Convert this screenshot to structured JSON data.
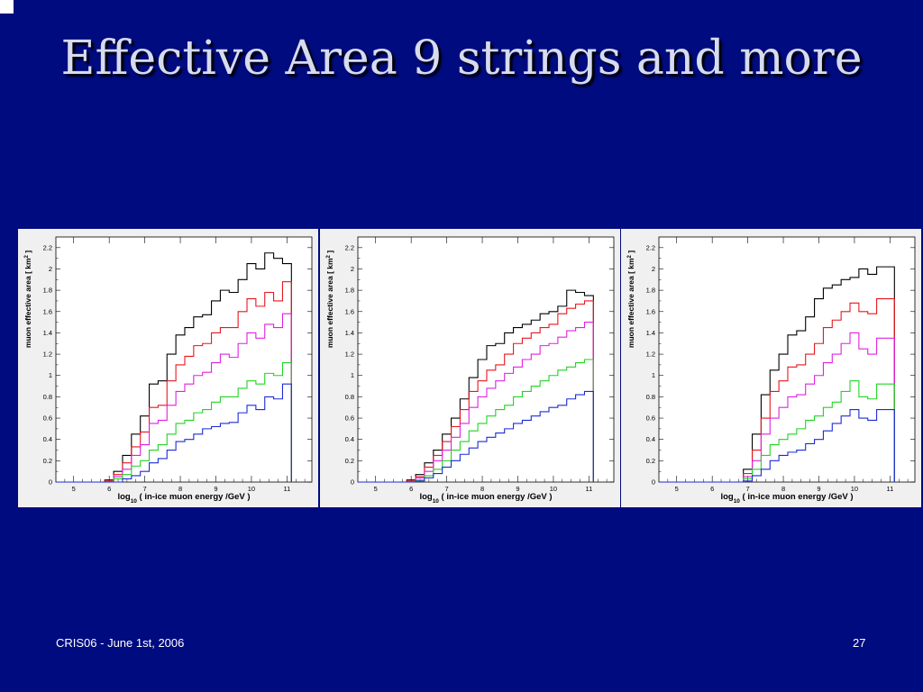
{
  "slide": {
    "title": "Effective Area 9 strings and more",
    "footer_left": "CRIS06 - June 1st, 2006",
    "footer_right": "27"
  },
  "chart_data": [
    {
      "type": "line",
      "step": true,
      "xlabel": "log10 ( in-ice muon energy /GeV )",
      "ylabel": "muon effective area [ km² ]",
      "xlim": [
        4.5,
        11.7
      ],
      "ylim": [
        0,
        2.3
      ],
      "x_ticks": [
        "5",
        "6",
        "7",
        "8",
        "9",
        "10",
        "11"
      ],
      "y_ticks": [
        "0",
        "0.2",
        "0.4",
        "0.6",
        "0.8",
        "1",
        "1.2",
        "1.4",
        "1.6",
        "1.8",
        "2",
        "2.2"
      ],
      "x": [
        6.0,
        6.25,
        6.5,
        6.75,
        7.0,
        7.25,
        7.5,
        7.75,
        8.0,
        8.25,
        8.5,
        8.75,
        9.0,
        9.25,
        9.5,
        9.75,
        10.0,
        10.25,
        10.5,
        10.75,
        11.0
      ],
      "series": [
        {
          "color": "#000000",
          "values": [
            0.02,
            0.1,
            0.25,
            0.45,
            0.62,
            0.92,
            0.95,
            1.2,
            1.38,
            1.45,
            1.55,
            1.57,
            1.7,
            1.8,
            1.78,
            1.9,
            2.05,
            2.0,
            2.15,
            2.1,
            2.05
          ]
        },
        {
          "color": "#e8161e",
          "values": [
            0.01,
            0.07,
            0.18,
            0.33,
            0.47,
            0.7,
            0.72,
            0.95,
            1.1,
            1.18,
            1.28,
            1.3,
            1.4,
            1.45,
            1.45,
            1.6,
            1.72,
            1.65,
            1.78,
            1.7,
            1.88
          ]
        },
        {
          "color": "#e020e0",
          "values": [
            0.0,
            0.05,
            0.12,
            0.25,
            0.35,
            0.55,
            0.58,
            0.72,
            0.85,
            0.92,
            1.0,
            1.03,
            1.12,
            1.2,
            1.17,
            1.3,
            1.4,
            1.35,
            1.48,
            1.45,
            1.58
          ]
        },
        {
          "color": "#22d322",
          "values": [
            0.0,
            0.03,
            0.07,
            0.15,
            0.2,
            0.3,
            0.35,
            0.45,
            0.55,
            0.58,
            0.65,
            0.68,
            0.75,
            0.8,
            0.8,
            0.88,
            0.95,
            0.92,
            1.02,
            1.0,
            1.12
          ]
        },
        {
          "color": "#1c2bd6",
          "values": [
            0.0,
            0.0,
            0.03,
            0.06,
            0.1,
            0.18,
            0.22,
            0.3,
            0.38,
            0.4,
            0.45,
            0.5,
            0.52,
            0.55,
            0.56,
            0.65,
            0.72,
            0.68,
            0.8,
            0.78,
            0.92
          ]
        }
      ]
    },
    {
      "type": "line",
      "step": true,
      "xlabel": "log10 ( in-ice muon energy /GeV )",
      "ylabel": "muon effective area [ km² ]",
      "xlim": [
        4.5,
        11.7
      ],
      "ylim": [
        0,
        2.3
      ],
      "x_ticks": [
        "5",
        "6",
        "7",
        "8",
        "9",
        "10",
        "11"
      ],
      "y_ticks": [
        "0",
        "0.2",
        "0.4",
        "0.6",
        "0.8",
        "1",
        "1.2",
        "1.4",
        "1.6",
        "1.8",
        "2",
        "2.2"
      ],
      "x": [
        6.0,
        6.25,
        6.5,
        6.75,
        7.0,
        7.25,
        7.5,
        7.75,
        8.0,
        8.25,
        8.5,
        8.75,
        9.0,
        9.25,
        9.5,
        9.75,
        10.0,
        10.25,
        10.5,
        10.75,
        11.0
      ],
      "series": [
        {
          "color": "#000000",
          "values": [
            0.02,
            0.07,
            0.18,
            0.3,
            0.45,
            0.6,
            0.78,
            0.98,
            1.15,
            1.28,
            1.3,
            1.4,
            1.45,
            1.48,
            1.52,
            1.58,
            1.6,
            1.65,
            1.8,
            1.78,
            1.75
          ]
        },
        {
          "color": "#e8161e",
          "values": [
            0.01,
            0.05,
            0.14,
            0.25,
            0.38,
            0.52,
            0.68,
            0.85,
            0.95,
            1.05,
            1.1,
            1.2,
            1.3,
            1.35,
            1.4,
            1.45,
            1.48,
            1.58,
            1.63,
            1.67,
            1.7
          ]
        },
        {
          "color": "#e020e0",
          "values": [
            0.0,
            0.04,
            0.1,
            0.2,
            0.3,
            0.42,
            0.55,
            0.7,
            0.8,
            0.88,
            0.95,
            1.02,
            1.08,
            1.15,
            1.2,
            1.28,
            1.3,
            1.36,
            1.42,
            1.45,
            1.5
          ]
        },
        {
          "color": "#22d322",
          "values": [
            0.0,
            0.02,
            0.06,
            0.12,
            0.2,
            0.3,
            0.38,
            0.48,
            0.55,
            0.62,
            0.68,
            0.72,
            0.8,
            0.85,
            0.9,
            0.95,
            1.0,
            1.05,
            1.08,
            1.12,
            1.15
          ]
        },
        {
          "color": "#1c2bd6",
          "values": [
            0.0,
            0.01,
            0.04,
            0.08,
            0.14,
            0.2,
            0.26,
            0.32,
            0.38,
            0.42,
            0.46,
            0.5,
            0.55,
            0.58,
            0.62,
            0.66,
            0.7,
            0.72,
            0.78,
            0.82,
            0.85
          ]
        }
      ]
    },
    {
      "type": "line",
      "step": true,
      "xlabel": "log10 ( in-ice muon energy /GeV )",
      "ylabel": "muon effective area [ km² ]",
      "xlim": [
        4.5,
        11.7
      ],
      "ylim": [
        0,
        2.3
      ],
      "x_ticks": [
        "5",
        "6",
        "7",
        "8",
        "9",
        "10",
        "11"
      ],
      "y_ticks": [
        "0",
        "0.2",
        "0.4",
        "0.6",
        "0.8",
        "1",
        "1.2",
        "1.4",
        "1.6",
        "1.8",
        "2",
        "2.2"
      ],
      "x": [
        7.0,
        7.25,
        7.5,
        7.75,
        8.0,
        8.25,
        8.5,
        8.75,
        9.0,
        9.25,
        9.5,
        9.75,
        10.0,
        10.25,
        10.5,
        10.75,
        11.0
      ],
      "series": [
        {
          "color": "#000000",
          "values": [
            0.12,
            0.45,
            0.82,
            1.05,
            1.2,
            1.38,
            1.42,
            1.55,
            1.72,
            1.82,
            1.85,
            1.9,
            1.92,
            2.0,
            1.95,
            2.02,
            2.02
          ]
        },
        {
          "color": "#e8161e",
          "values": [
            0.08,
            0.3,
            0.6,
            0.85,
            0.95,
            1.08,
            1.1,
            1.2,
            1.3,
            1.45,
            1.52,
            1.6,
            1.68,
            1.6,
            1.58,
            1.72,
            1.72
          ]
        },
        {
          "color": "#e020e0",
          "values": [
            0.05,
            0.2,
            0.45,
            0.6,
            0.7,
            0.8,
            0.82,
            0.92,
            1.0,
            1.12,
            1.2,
            1.3,
            1.4,
            1.25,
            1.2,
            1.35,
            1.35
          ]
        },
        {
          "color": "#22d322",
          "values": [
            0.03,
            0.12,
            0.25,
            0.35,
            0.4,
            0.45,
            0.5,
            0.58,
            0.62,
            0.7,
            0.75,
            0.85,
            0.95,
            0.8,
            0.78,
            0.92,
            0.92
          ]
        },
        {
          "color": "#1c2bd6",
          "values": [
            0.01,
            0.06,
            0.12,
            0.2,
            0.25,
            0.28,
            0.3,
            0.36,
            0.4,
            0.48,
            0.55,
            0.62,
            0.68,
            0.6,
            0.58,
            0.68,
            0.68
          ]
        }
      ]
    }
  ]
}
